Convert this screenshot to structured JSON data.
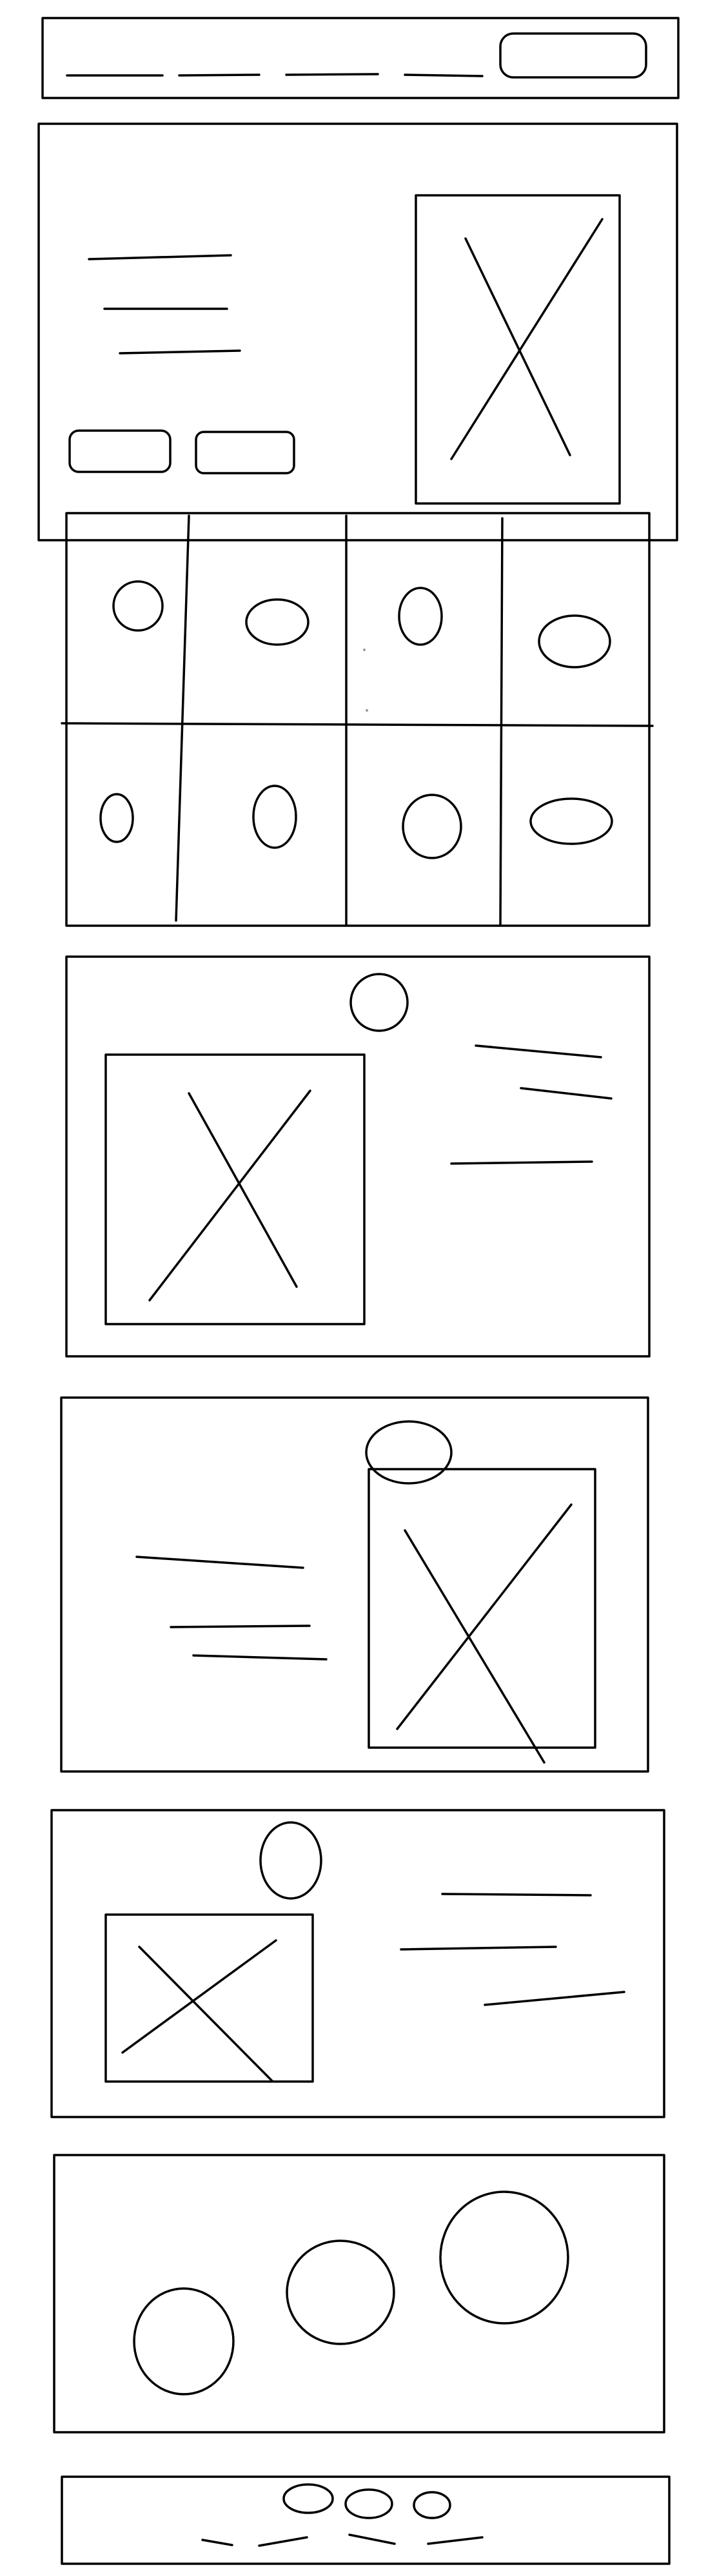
{
  "diagram": {
    "kind": "hand-drawn low-fidelity wireframe",
    "stroke_color": "#000000",
    "background_color": "#ffffff",
    "sections": [
      {
        "id": "nav-bar",
        "contents": [
          "nav-link",
          "nav-link",
          "nav-link",
          "nav-link",
          "button"
        ]
      },
      {
        "id": "hero-section",
        "contents": [
          "text-line",
          "text-line",
          "text-line",
          "button",
          "button",
          "image-placeholder"
        ]
      },
      {
        "id": "icon-grid-section",
        "contents": [
          "grid-4x2",
          "icon-circle x8"
        ]
      },
      {
        "id": "feature-section-1",
        "contents": [
          "image-placeholder",
          "icon-circle",
          "text-line",
          "text-line",
          "text-line"
        ]
      },
      {
        "id": "feature-section-2",
        "contents": [
          "text-line",
          "text-line",
          "text-line",
          "image-placeholder",
          "icon-circle"
        ]
      },
      {
        "id": "feature-section-3",
        "contents": [
          "icon-circle",
          "image-placeholder",
          "text-line",
          "text-line",
          "text-line"
        ]
      },
      {
        "id": "circles-section",
        "contents": [
          "circle",
          "circle",
          "circle"
        ]
      },
      {
        "id": "footer",
        "contents": [
          "social-icon",
          "social-icon",
          "social-icon",
          "footer-link",
          "footer-link",
          "footer-link",
          "footer-link"
        ]
      }
    ]
  }
}
